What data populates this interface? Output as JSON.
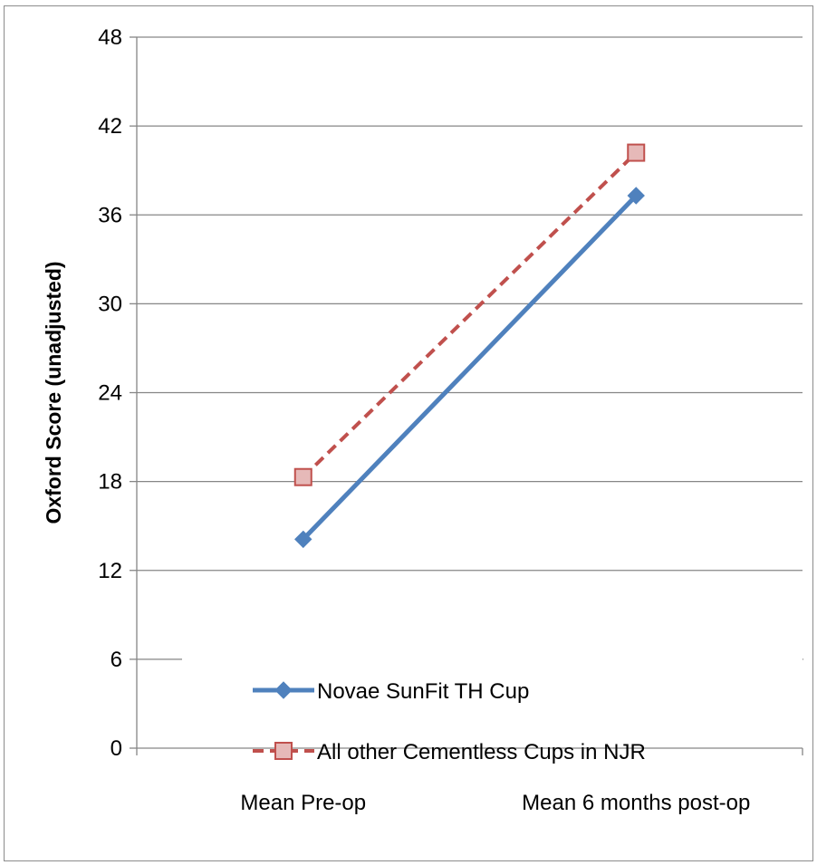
{
  "chart_data": {
    "type": "line",
    "title": "",
    "xlabel": "",
    "ylabel": "Oxford Score (unadjusted)",
    "categories": [
      "Mean Pre-op",
      "Mean 6 months post-op"
    ],
    "ylim": [
      0,
      48
    ],
    "yticks": [
      "0",
      "6",
      "12",
      "18",
      "24",
      "30",
      "36",
      "42",
      "48"
    ],
    "grid": "horizontal",
    "legend": "bottom-center",
    "series": [
      {
        "name": "Novae SunFit TH Cup",
        "values": [
          14.1,
          37.3
        ],
        "color": "#4f81bd",
        "style": "solid",
        "marker": "diamond"
      },
      {
        "name": "All other Cementless Cups in NJR",
        "values": [
          18.3,
          40.2
        ],
        "color": "#c0504d",
        "style": "dashed",
        "marker": "square"
      }
    ]
  }
}
